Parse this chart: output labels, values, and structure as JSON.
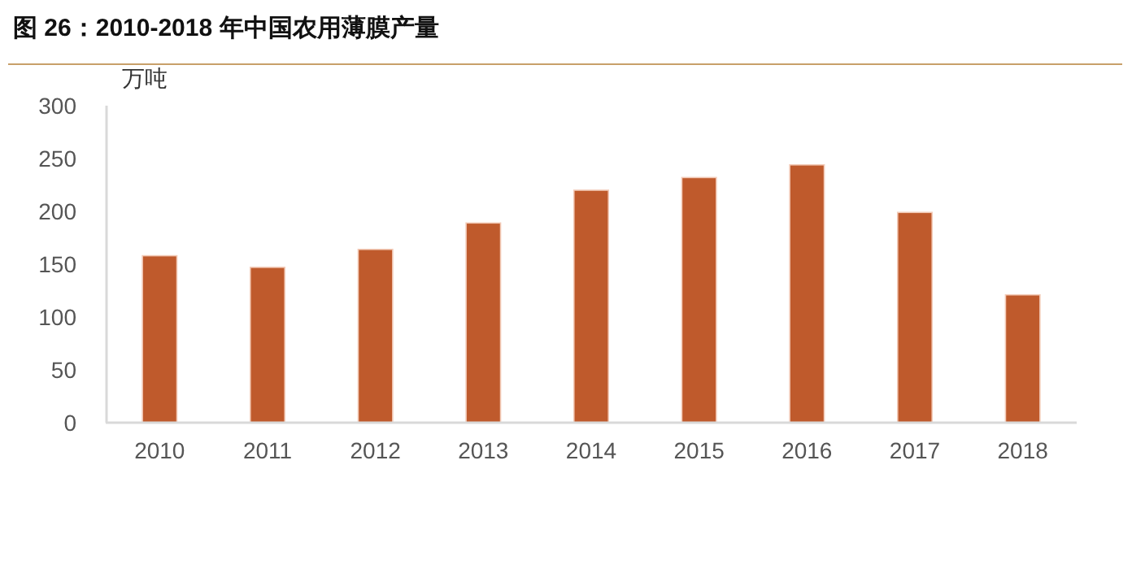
{
  "chart_data": {
    "type": "bar",
    "title": "图 26：2010-2018 年中国农用薄膜产量",
    "ylabel": "万吨",
    "categories": [
      "2010",
      "2011",
      "2012",
      "2013",
      "2014",
      "2015",
      "2016",
      "2017",
      "2018"
    ],
    "series": [
      {
        "color": "#bf5a2c",
        "values": [
          158,
          147,
          164,
          189,
          220,
          232,
          244,
          199,
          121
        ]
      }
    ],
    "ylim": [
      0,
      300
    ],
    "yticks": [
      0,
      50,
      100,
      150,
      200,
      250,
      300
    ],
    "grid": false
  }
}
